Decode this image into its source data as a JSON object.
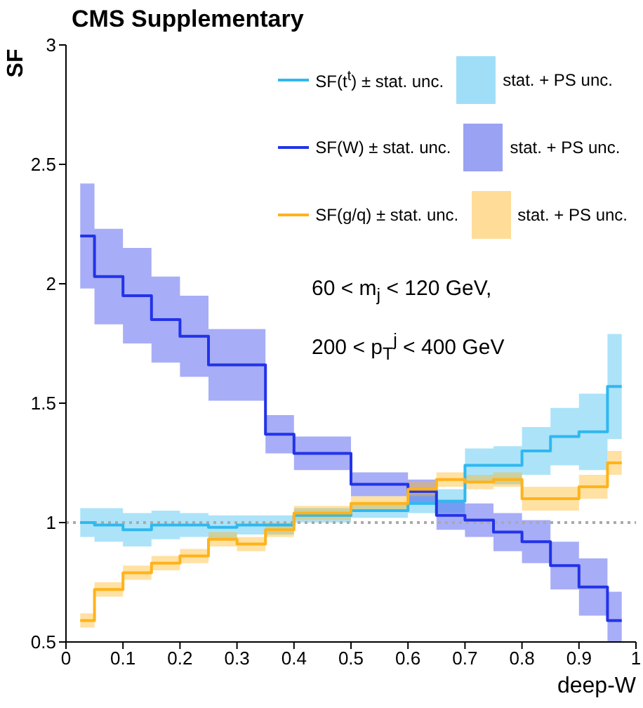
{
  "chart_data": {
    "type": "step",
    "title": "CMS Supplementary",
    "xlabel": "deep-W",
    "ylabel": "SF",
    "x": [
      0.025,
      0.075,
      0.125,
      0.175,
      0.225,
      0.275,
      0.325,
      0.375,
      0.425,
      0.475,
      0.525,
      0.575,
      0.625,
      0.675,
      0.725,
      0.775,
      0.825,
      0.875,
      0.925,
      0.975
    ],
    "series": [
      {
        "name": "SF(t$^{t}$) ± stat. unc.",
        "color": "#2fb8f0",
        "values": [
          1.0,
          0.99,
          0.97,
          0.99,
          0.99,
          0.98,
          0.99,
          0.99,
          1.03,
          1.03,
          1.05,
          1.05,
          1.08,
          1.09,
          1.24,
          1.24,
          1.3,
          1.36,
          1.38,
          1.57
        ],
        "lower": [
          0.94,
          0.92,
          0.9,
          0.93,
          0.94,
          0.93,
          0.95,
          0.95,
          1.0,
          1.0,
          1.02,
          1.02,
          1.04,
          1.04,
          1.17,
          1.16,
          1.2,
          1.24,
          1.22,
          1.35
        ],
        "upper": [
          1.06,
          1.06,
          1.04,
          1.05,
          1.04,
          1.03,
          1.03,
          1.03,
          1.06,
          1.06,
          1.08,
          1.08,
          1.12,
          1.14,
          1.31,
          1.32,
          1.4,
          1.48,
          1.54,
          1.79
        ]
      },
      {
        "name": "SF(W) ± stat. unc.",
        "color": "#2233e8",
        "values": [
          2.2,
          2.03,
          1.95,
          1.85,
          1.78,
          1.66,
          1.66,
          1.37,
          1.29,
          1.29,
          1.16,
          1.16,
          1.13,
          1.03,
          1.01,
          0.96,
          0.92,
          0.82,
          0.73,
          0.59
        ],
        "lower": [
          1.98,
          1.83,
          1.75,
          1.67,
          1.61,
          1.51,
          1.51,
          1.29,
          1.22,
          1.22,
          1.11,
          1.11,
          1.08,
          0.97,
          0.94,
          0.88,
          0.83,
          0.72,
          0.61,
          0.5
        ],
        "upper": [
          2.42,
          2.23,
          2.15,
          2.03,
          1.95,
          1.81,
          1.81,
          1.45,
          1.36,
          1.36,
          1.21,
          1.21,
          1.18,
          1.09,
          1.08,
          1.04,
          1.01,
          0.92,
          0.85,
          0.71
        ]
      },
      {
        "name": "SF(g/q) ± stat. unc.",
        "color": "#ffb31a",
        "values": [
          0.59,
          0.72,
          0.79,
          0.83,
          0.86,
          0.93,
          0.91,
          0.97,
          1.04,
          1.04,
          1.08,
          1.08,
          1.14,
          1.18,
          1.17,
          1.18,
          1.1,
          1.1,
          1.15,
          1.25
        ],
        "lower": [
          0.56,
          0.69,
          0.76,
          0.8,
          0.83,
          0.9,
          0.88,
          0.94,
          1.01,
          1.01,
          1.05,
          1.05,
          1.11,
          1.15,
          1.14,
          1.15,
          1.05,
          1.05,
          1.1,
          1.2
        ],
        "upper": [
          0.62,
          0.75,
          0.82,
          0.86,
          0.89,
          0.96,
          0.94,
          1.0,
          1.07,
          1.07,
          1.11,
          1.11,
          1.17,
          1.21,
          1.2,
          1.21,
          1.15,
          1.15,
          1.2,
          1.3
        ]
      }
    ],
    "annotations": [
      "stat. + PS unc.",
      "stat. + PS unc.",
      "stat. + PS unc.",
      "60 < m$_{j}$ < 120 GeV,",
      "200 < p$_{T}$$^{j}$ < 400 GeV"
    ],
    "ref_lines": [
      {
        "axis": "y",
        "value": 1,
        "color": "#aaaaaa",
        "line_style": "dotted"
      }
    ],
    "xlim": [
      0,
      1
    ],
    "xticks": [
      0,
      0.1,
      0.2,
      0.3,
      0.4,
      0.5,
      0.6,
      0.7,
      0.8,
      0.9,
      1
    ],
    "ylim": [
      0.5,
      3
    ],
    "yticks": [
      0.5,
      1,
      1.5,
      2,
      2.5,
      3
    ],
    "legend": "top right",
    "grid": false
  }
}
